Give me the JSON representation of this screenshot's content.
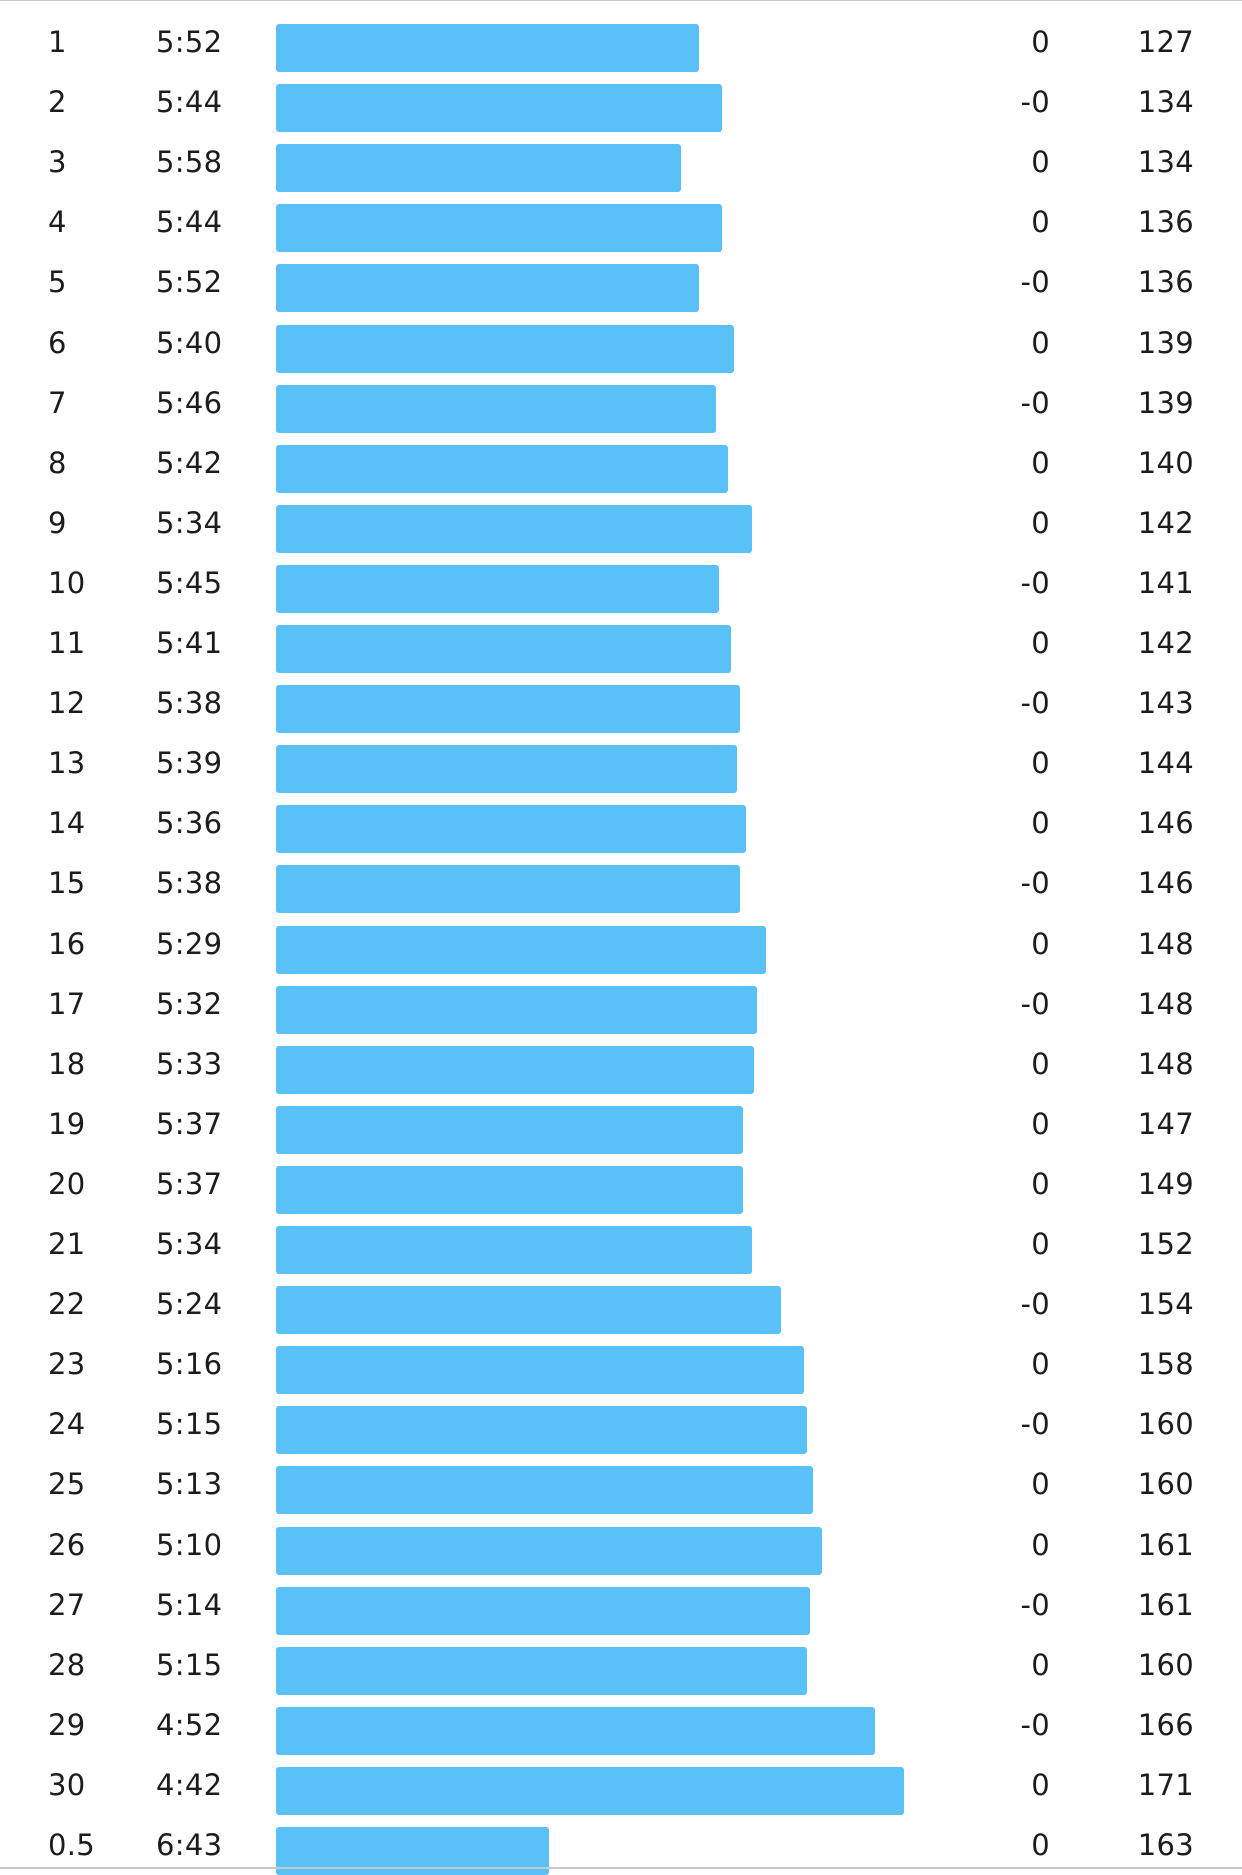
{
  "accent_color": "#5ac0f8",
  "splits": [
    {
      "km": "1",
      "pace": "5:52",
      "elevation": "0",
      "heart_rate": "127"
    },
    {
      "km": "2",
      "pace": "5:44",
      "elevation": "-0",
      "heart_rate": "134"
    },
    {
      "km": "3",
      "pace": "5:58",
      "elevation": "0",
      "heart_rate": "134"
    },
    {
      "km": "4",
      "pace": "5:44",
      "elevation": "0",
      "heart_rate": "136"
    },
    {
      "km": "5",
      "pace": "5:52",
      "elevation": "-0",
      "heart_rate": "136"
    },
    {
      "km": "6",
      "pace": "5:40",
      "elevation": "0",
      "heart_rate": "139"
    },
    {
      "km": "7",
      "pace": "5:46",
      "elevation": "-0",
      "heart_rate": "139"
    },
    {
      "km": "8",
      "pace": "5:42",
      "elevation": "0",
      "heart_rate": "140"
    },
    {
      "km": "9",
      "pace": "5:34",
      "elevation": "0",
      "heart_rate": "142"
    },
    {
      "km": "10",
      "pace": "5:45",
      "elevation": "-0",
      "heart_rate": "141"
    },
    {
      "km": "11",
      "pace": "5:41",
      "elevation": "0",
      "heart_rate": "142"
    },
    {
      "km": "12",
      "pace": "5:38",
      "elevation": "-0",
      "heart_rate": "143"
    },
    {
      "km": "13",
      "pace": "5:39",
      "elevation": "0",
      "heart_rate": "144"
    },
    {
      "km": "14",
      "pace": "5:36",
      "elevation": "0",
      "heart_rate": "146"
    },
    {
      "km": "15",
      "pace": "5:38",
      "elevation": "-0",
      "heart_rate": "146"
    },
    {
      "km": "16",
      "pace": "5:29",
      "elevation": "0",
      "heart_rate": "148"
    },
    {
      "km": "17",
      "pace": "5:32",
      "elevation": "-0",
      "heart_rate": "148"
    },
    {
      "km": "18",
      "pace": "5:33",
      "elevation": "0",
      "heart_rate": "148"
    },
    {
      "km": "19",
      "pace": "5:37",
      "elevation": "0",
      "heart_rate": "147"
    },
    {
      "km": "20",
      "pace": "5:37",
      "elevation": "0",
      "heart_rate": "149"
    },
    {
      "km": "21",
      "pace": "5:34",
      "elevation": "0",
      "heart_rate": "152"
    },
    {
      "km": "22",
      "pace": "5:24",
      "elevation": "-0",
      "heart_rate": "154"
    },
    {
      "km": "23",
      "pace": "5:16",
      "elevation": "0",
      "heart_rate": "158"
    },
    {
      "km": "24",
      "pace": "5:15",
      "elevation": "-0",
      "heart_rate": "160"
    },
    {
      "km": "25",
      "pace": "5:13",
      "elevation": "0",
      "heart_rate": "160"
    },
    {
      "km": "26",
      "pace": "5:10",
      "elevation": "0",
      "heart_rate": "161"
    },
    {
      "km": "27",
      "pace": "5:14",
      "elevation": "-0",
      "heart_rate": "161"
    },
    {
      "km": "28",
      "pace": "5:15",
      "elevation": "0",
      "heart_rate": "160"
    },
    {
      "km": "29",
      "pace": "4:52",
      "elevation": "-0",
      "heart_rate": "166"
    },
    {
      "km": "30",
      "pace": "4:42",
      "elevation": "0",
      "heart_rate": "171"
    },
    {
      "km": "0.5",
      "pace": "6:43",
      "elevation": "0",
      "heart_rate": "163"
    }
  ]
}
